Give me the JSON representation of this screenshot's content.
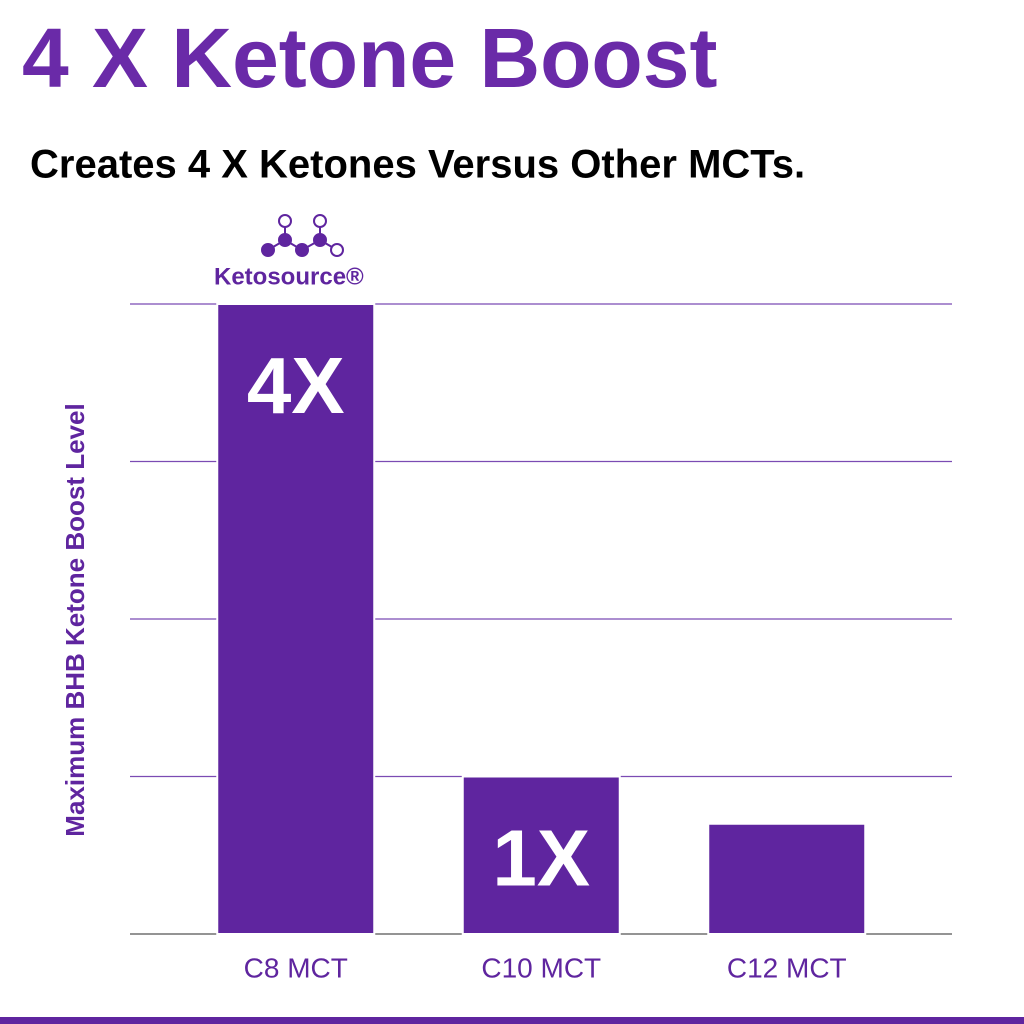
{
  "chart_data": {
    "type": "bar",
    "title": "4 X Ketone Boost",
    "subtitle": "Creates 4 X Ketones Versus Other MCTs.",
    "annotation": "Ketosource®",
    "y_label": "Maximum BHB Ketone Boost Level",
    "categories": [
      "C8 MCT",
      "C10 MCT",
      "C12 MCT"
    ],
    "values": [
      4,
      1,
      0.7
    ],
    "value_labels": [
      "4X",
      "1X",
      null
    ],
    "color": "#5f259f",
    "ylim": [
      0,
      4
    ],
    "yticks": [
      0,
      1,
      2,
      3,
      4
    ],
    "grid": true
  }
}
